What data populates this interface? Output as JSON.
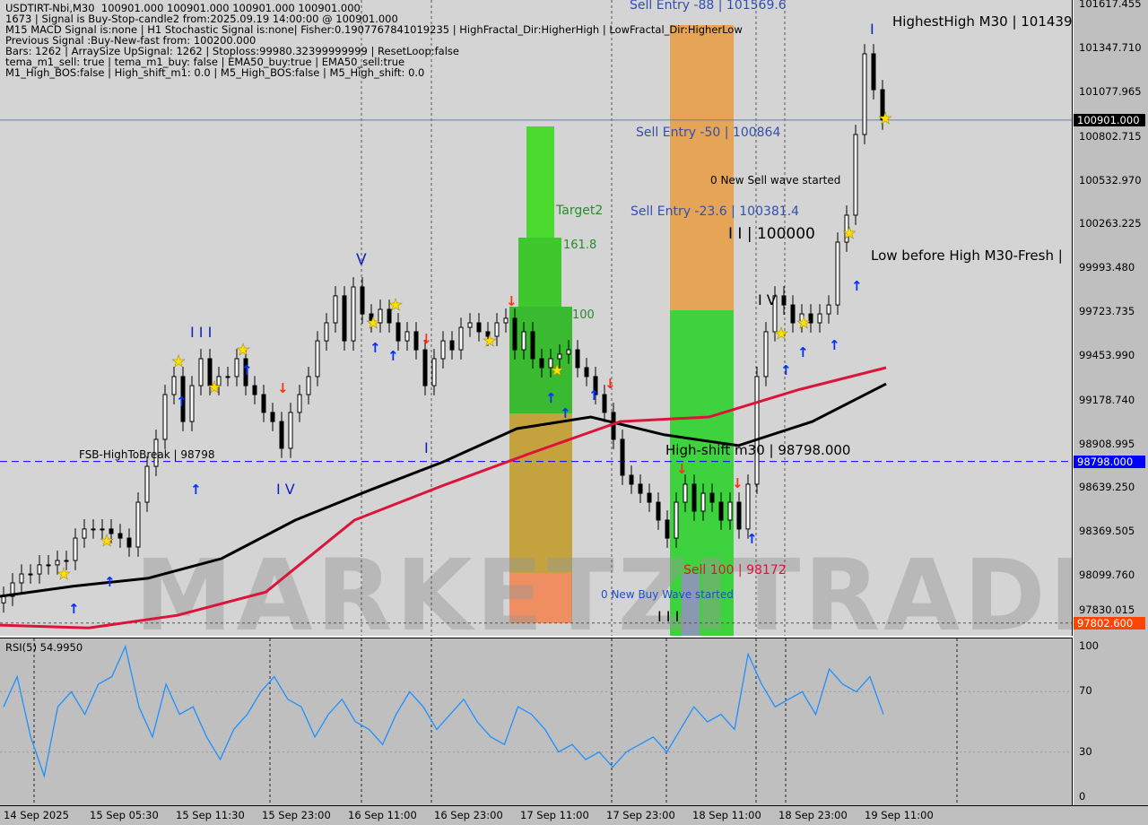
{
  "window": {
    "title": "USDTIRT-Nbi,M30  100901.000 100901.000 100901.000 100901.000"
  },
  "info_lines": [
    "1673 | Signal is Buy-Stop-candle2 from:2025.09.19 14:00:00 @ 100901.000",
    "M15 MACD Signal is:none | H1 Stochastic Signal is:none| Fisher:0.1907767841019235 | HighFractal_Dir:HigherHigh | LowFractal_Dir:HigherLow",
    "Previous Signal :Buy-New-fast from: 100200.000",
    "Bars: 1262 | ArraySize UpSignal: 1262 | Stoploss:99980.32399999999 | ResetLoop:false",
    "tema_m1_sell: true | tema_m1_buy: false | EMA50_buy:true | EMA50_sell:true",
    "M1_High_BOS:false | High_shift_m1: 0.0 | M5_High_BOS:false | M5_High_shift: 0.0"
  ],
  "annotations": {
    "sell_entry_88": "Sell Entry -88 | 101569.6",
    "highest_high": "HighestHigh   M30 | 101439",
    "sell_entry_50": "Sell Entry -50 | 100864",
    "new_sell_wave": "0 New Sell wave started",
    "sell_entry_236": "Sell Entry -23.6 | 100381.4",
    "level_100000": "I I | 100000",
    "low_before_high": "Low before High   M30-Fresh |",
    "target2": "Target2",
    "fib_161": "161.8",
    "fib_100": "100",
    "high_shift": "High-shift m30 | 98798.000",
    "fsb": "FSB-HighToBreak | 98798",
    "sell_100": "Sell 100 | 98172",
    "new_buy_wave": "0 New Buy Wave started",
    "wave_v": "V",
    "wave_iii": "I I I",
    "wave_iv": "I V",
    "wave_i": "I",
    "wave_iv2": "I V",
    "wave_iii2": "I I I",
    "wave_i2": "I"
  },
  "watermark": "MARKETZITRADE",
  "chart_data": {
    "type": "candlestick",
    "symbol": "USDTIRT-Nbi",
    "timeframe": "M30",
    "y_ticks": [
      "101617.455",
      "101347.710",
      "101077.965",
      "100802.715",
      "100532.970",
      "100263.225",
      "99993.480",
      "99723.735",
      "99453.990",
      "99178.740",
      "98908.995",
      "98639.250",
      "98369.505",
      "98099.760",
      "97830.015"
    ],
    "ylim": [
      97802.6,
      101617.455
    ],
    "price_tags": [
      {
        "value": "100901.000",
        "color": "#000000",
        "text_color": "#ffffff"
      },
      {
        "value": "98798.000",
        "color": "#0000ff",
        "text_color": "#ffffff"
      },
      {
        "value": "97802.600",
        "color": "#ff4500",
        "text_color": "#ffffff"
      }
    ],
    "x_ticks": [
      "14 Sep 2025",
      "15 Sep 05:30",
      "15 Sep 11:30",
      "15 Sep 23:00",
      "16 Sep 11:00",
      "16 Sep 23:00",
      "17 Sep 11:00",
      "17 Sep 23:00",
      "18 Sep 11:00",
      "18 Sep 23:00",
      "19 Sep 11:00"
    ],
    "closes": [
      97967,
      98050,
      98105,
      98105,
      98161,
      98161,
      98188,
      98188,
      98326,
      98382,
      98382,
      98382,
      98354,
      98326,
      98271,
      98547,
      98768,
      98934,
      99210,
      99321,
      99044,
      99265,
      99431,
      99265,
      99321,
      99321,
      99431,
      99265,
      99210,
      99100,
      99044,
      98879,
      99100,
      99210,
      99321,
      99541,
      99652,
      99818,
      99541,
      99873,
      99707,
      99652,
      99735,
      99652,
      99541,
      99597,
      99486,
      99265,
      99431,
      99541,
      99486,
      99624,
      99652,
      99597,
      99569,
      99652,
      99680,
      99486,
      99597,
      99431,
      99376,
      99431,
      99459,
      99486,
      99376,
      99321,
      99210,
      99100,
      98934,
      98713,
      98658,
      98602,
      98547,
      98437,
      98326,
      98547,
      98658,
      98492,
      98602,
      98547,
      98437,
      98547,
      98382,
      98658,
      99321,
      99597,
      99818,
      99762,
      99652,
      99707,
      99652,
      99707,
      99762,
      100149,
      100315,
      100812,
      101309,
      101088,
      100901
    ],
    "ema_black": [
      97967,
      98030,
      98078,
      98200,
      98437,
      98620,
      98795,
      99000,
      99072,
      98962,
      98896,
      99044,
      99276
    ],
    "ema_red": [
      97790,
      97773,
      97850,
      97994,
      98437,
      98650,
      98851,
      99044,
      99072,
      99238,
      99376
    ],
    "rsi": {
      "label": "RSI(5) 54.9950",
      "y_ticks": [
        "100",
        "70",
        "30",
        "0"
      ],
      "values": [
        60,
        80,
        40,
        14,
        60,
        70,
        55,
        75,
        80,
        100,
        60,
        40,
        75,
        55,
        60,
        40,
        25,
        45,
        55,
        70,
        80,
        65,
        60,
        40,
        55,
        65,
        50,
        45,
        35,
        55,
        70,
        60,
        45,
        55,
        65,
        50,
        40,
        35,
        60,
        55,
        45,
        30,
        35,
        25,
        30,
        20,
        30,
        35,
        40,
        30,
        45,
        60,
        50,
        55,
        45,
        95,
        75,
        60,
        65,
        70,
        55,
        85,
        75,
        70,
        80,
        55
      ]
    },
    "colors": {
      "bull_bear_candle": "#000000",
      "ema_black": "#000000",
      "ema_red": "#dc143c",
      "rsi": "#1e90ff",
      "sell_zone": "#f0a030",
      "buy_zone": "#32cd32"
    }
  }
}
